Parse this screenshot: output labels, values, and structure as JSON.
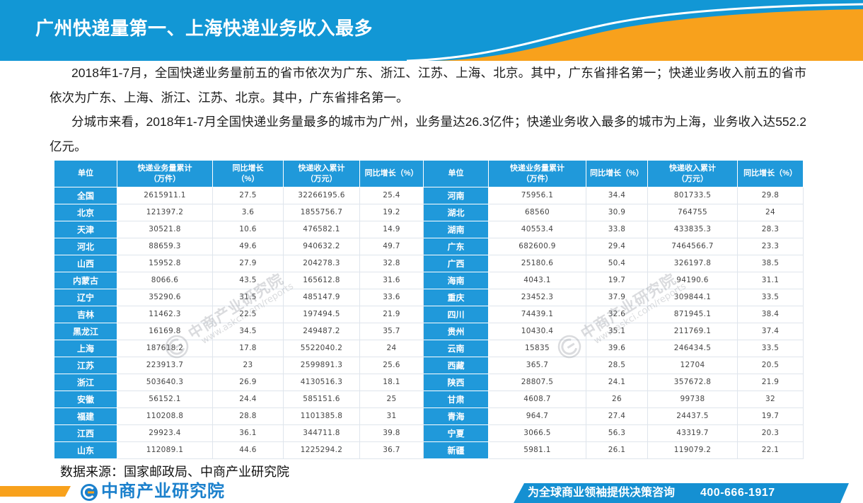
{
  "header": {
    "title": "广州快递量第一、上海快递业务收入最多"
  },
  "intro": {
    "paragraphs": [
      "2018年1-7月，全国快递业务量前五的省市依次为广东、浙江、江苏、上海、北京。其中，广东省排名第一；快递业务收入前五的省市依次为广东、上海、浙江、江苏、北京。其中，广东省排名第一。",
      "分城市来看，2018年1-7月全国快递业务量最多的城市为广州，业务量达26.3亿件；快递业务收入最多的城市为上海，业务收入达552.2亿元。"
    ]
  },
  "table": {
    "columns": [
      {
        "lines": [
          "单位"
        ]
      },
      {
        "lines": [
          "快递业务量累计",
          "（万件）"
        ]
      },
      {
        "lines": [
          "同比增长",
          "（%）"
        ]
      },
      {
        "lines": [
          "快递收入累计",
          "（万元）"
        ]
      },
      {
        "lines": [
          "同比增长（%）"
        ]
      },
      {
        "lines": [
          "单位"
        ]
      },
      {
        "lines": [
          "快递业务量累计",
          "（万件）"
        ]
      },
      {
        "lines": [
          "同比增长（%）"
        ]
      },
      {
        "lines": [
          "快递收入累计",
          "（万元）"
        ]
      },
      {
        "lines": [
          "同比增长（%）"
        ]
      }
    ],
    "rows": [
      {
        "left": [
          "全国",
          "2615911.1",
          "27.5",
          "32266195.6",
          "25.4"
        ],
        "right": [
          "河南",
          "75956.1",
          "34.4",
          "801733.5",
          "29.8"
        ]
      },
      {
        "left": [
          "北京",
          "121397.2",
          "3.6",
          "1855756.7",
          "19.2"
        ],
        "right": [
          "湖北",
          "68560",
          "30.9",
          "764755",
          "24"
        ]
      },
      {
        "left": [
          "天津",
          "30521.8",
          "10.6",
          "476582.1",
          "14.9"
        ],
        "right": [
          "湖南",
          "40553.4",
          "33.8",
          "433835.3",
          "28.3"
        ]
      },
      {
        "left": [
          "河北",
          "88659.3",
          "49.6",
          "940632.2",
          "49.7"
        ],
        "right": [
          "广东",
          "682600.9",
          "29.4",
          "7464566.7",
          "23.3"
        ]
      },
      {
        "left": [
          "山西",
          "15952.8",
          "27.9",
          "204278.3",
          "32.8"
        ],
        "right": [
          "广西",
          "25180.6",
          "50.4",
          "326197.8",
          "38.5"
        ]
      },
      {
        "left": [
          "内蒙古",
          "8066.6",
          "43.5",
          "165612.8",
          "31.6"
        ],
        "right": [
          "海南",
          "4043.1",
          "19.7",
          "94190.6",
          "31.1"
        ]
      },
      {
        "left": [
          "辽宁",
          "35290.6",
          "31.5",
          "485147.9",
          "33.6"
        ],
        "right": [
          "重庆",
          "23452.3",
          "37.9",
          "309844.1",
          "33.5"
        ]
      },
      {
        "left": [
          "吉林",
          "11462.3",
          "22.5",
          "197494.5",
          "21.9"
        ],
        "right": [
          "四川",
          "74439.1",
          "32.6",
          "871945.1",
          "38.4"
        ]
      },
      {
        "left": [
          "黑龙江",
          "16169.8",
          "34.5",
          "249487.2",
          "35.7"
        ],
        "right": [
          "贵州",
          "10430.4",
          "35.1",
          "211769.1",
          "37.4"
        ]
      },
      {
        "left": [
          "上海",
          "187618.2",
          "17.8",
          "5522040.2",
          "24"
        ],
        "right": [
          "云南",
          "15835",
          "39.6",
          "246434.5",
          "33.5"
        ]
      },
      {
        "left": [
          "江苏",
          "223913.7",
          "23",
          "2599891.3",
          "25.6"
        ],
        "right": [
          "西藏",
          "365.7",
          "28.5",
          "12704",
          "20.5"
        ]
      },
      {
        "left": [
          "浙江",
          "503640.3",
          "26.9",
          "4130516.3",
          "18.1"
        ],
        "right": [
          "陕西",
          "28807.5",
          "24.1",
          "357672.8",
          "21.9"
        ]
      },
      {
        "left": [
          "安徽",
          "56152.1",
          "24.4",
          "585151.6",
          "25"
        ],
        "right": [
          "甘肃",
          "4608.7",
          "26",
          "99738",
          "32"
        ]
      },
      {
        "left": [
          "福建",
          "110208.8",
          "28.8",
          "1101385.8",
          "31"
        ],
        "right": [
          "青海",
          "964.7",
          "27.4",
          "24437.5",
          "19.7"
        ]
      },
      {
        "left": [
          "江西",
          "29923.4",
          "36.1",
          "344711.8",
          "39.8"
        ],
        "right": [
          "宁夏",
          "3066.5",
          "56.3",
          "43319.7",
          "20.3"
        ]
      },
      {
        "left": [
          "山东",
          "112089.1",
          "44.6",
          "1225294.2",
          "36.7"
        ],
        "right": [
          "新疆",
          "5981.1",
          "26.1",
          "119079.2",
          "22.1"
        ]
      }
    ]
  },
  "watermark": {
    "brand": "中商产业研究院",
    "url": "www.askci.com/reports"
  },
  "footer": {
    "source": "数据来源：国家邮政局、中商产业研究院",
    "logo_text": "中商产业研究院",
    "slogan": "为全球商业领袖提供决策咨询",
    "phone": "400-666-1917"
  },
  "icons": {
    "logo": "logo-icon",
    "watermark_logo": "watermark-logo-icon"
  },
  "colors": {
    "header_blue": "#1297d5",
    "accent_orange": "#f8a11c",
    "table_blue": "#2099da",
    "logo_blue": "#1b80cc",
    "footer_blue": "#1590d2"
  }
}
